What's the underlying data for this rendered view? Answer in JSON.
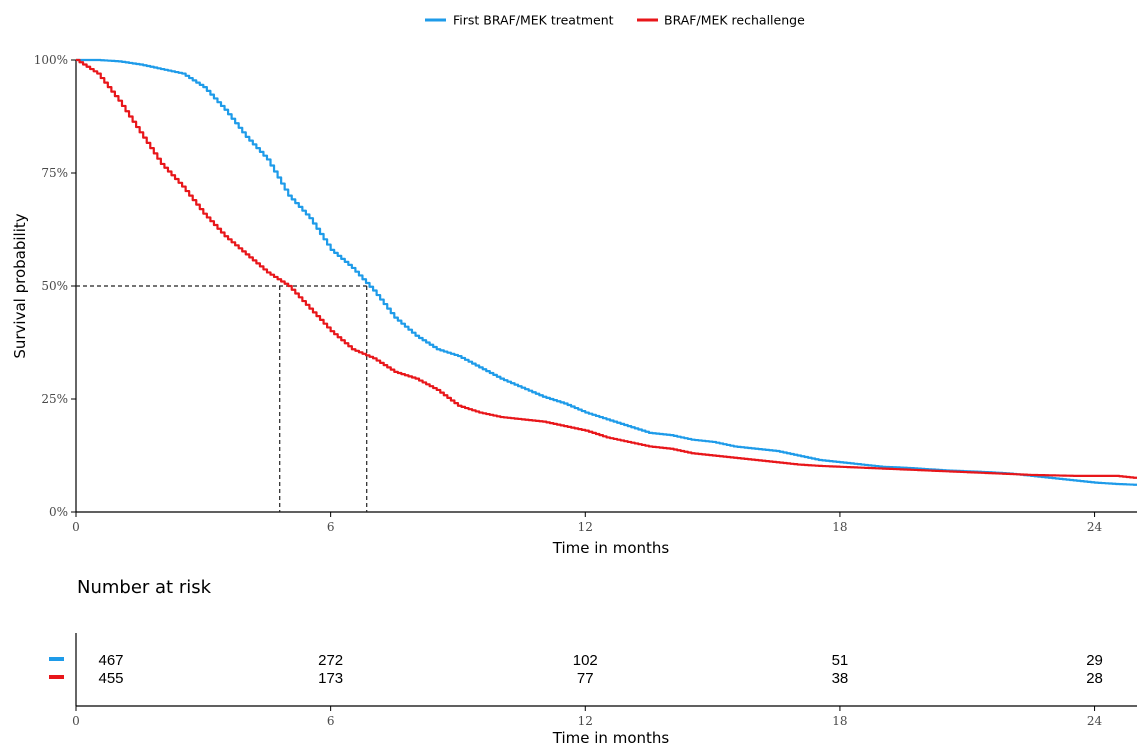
{
  "colors": {
    "first": "#1e9be9",
    "rechallenge": "#e8161a",
    "axis": "#000000",
    "guide": "#222222"
  },
  "legend": {
    "first_label": "First BRAF/MEK treatment",
    "rechallenge_label": "BRAF/MEK rechallenge"
  },
  "risk_table": {
    "title": "Number at risk",
    "first": [
      "467",
      "272",
      "102",
      "51",
      "29"
    ],
    "rechallenge": [
      "455",
      "173",
      "77",
      "38",
      "28"
    ],
    "xlabel": "Time in months"
  },
  "chart_data": {
    "type": "line",
    "title": "",
    "xlabel": "Time in months",
    "ylabel": "Survival probability",
    "xlim": [
      0,
      25
    ],
    "ylim": [
      0,
      100
    ],
    "x_ticks": [
      0,
      6,
      12,
      18,
      24
    ],
    "x_tick_labels": [
      "0",
      "6",
      "12",
      "18",
      "24"
    ],
    "y_ticks": [
      0,
      25,
      50,
      75,
      100
    ],
    "y_tick_labels": [
      "0%",
      "25%",
      "50%",
      "75%",
      "100%"
    ],
    "grid": false,
    "legend_position": "top",
    "median_guides": [
      {
        "x": 4.8,
        "y": 50
      },
      {
        "x": 6.85,
        "y": 50
      }
    ],
    "series": [
      {
        "name": "First BRAF/MEK treatment",
        "color": "#1e9be9",
        "x": [
          0,
          0.5,
          1.0,
          1.5,
          2.0,
          2.5,
          3.0,
          3.5,
          4.0,
          4.5,
          5.0,
          5.5,
          6.0,
          6.5,
          7.0,
          7.5,
          8.0,
          8.5,
          9.0,
          9.5,
          10.0,
          10.5,
          11.0,
          11.5,
          12.0,
          12.5,
          13.0,
          13.5,
          14.0,
          14.5,
          15.0,
          15.5,
          16.0,
          16.5,
          17.0,
          17.5,
          18.0,
          18.5,
          19.0,
          19.5,
          20.0,
          20.5,
          21.0,
          21.5,
          22.0,
          22.5,
          23.0,
          23.5,
          24.0,
          24.5,
          25.0
        ],
        "y": [
          100,
          100,
          99.7,
          99,
          98,
          97,
          94,
          89,
          83,
          78,
          70,
          65,
          58,
          54,
          49,
          43,
          39,
          36,
          34.5,
          32,
          29.5,
          27.5,
          25.5,
          24,
          22,
          20.5,
          19,
          17.5,
          17,
          16,
          15.5,
          14.5,
          14,
          13.5,
          12.5,
          11.5,
          11,
          10.5,
          10,
          9.8,
          9.5,
          9.2,
          9,
          8.8,
          8.5,
          8,
          7.5,
          7,
          6.5,
          6.2,
          6
        ]
      },
      {
        "name": "BRAF/MEK rechallenge",
        "color": "#e8161a",
        "x": [
          0,
          0.5,
          1.0,
          1.5,
          2.0,
          2.5,
          3.0,
          3.5,
          4.0,
          4.5,
          5.0,
          5.5,
          6.0,
          6.5,
          7.0,
          7.5,
          8.0,
          8.5,
          9.0,
          9.5,
          10.0,
          10.5,
          11.0,
          11.5,
          12.0,
          12.5,
          13.0,
          13.5,
          14.0,
          14.5,
          15.0,
          15.5,
          16.0,
          16.5,
          17.0,
          17.5,
          18.0,
          18.5,
          19.0,
          19.5,
          20.0,
          20.5,
          21.0,
          21.5,
          22.0,
          22.5,
          23.0,
          23.5,
          24.0,
          24.5,
          25.0
        ],
        "y": [
          100,
          97,
          91,
          84,
          77,
          72,
          66,
          61,
          57,
          53,
          50,
          45,
          40,
          36,
          34,
          31,
          29.5,
          27,
          23.5,
          22,
          21,
          20.5,
          20,
          19,
          18,
          16.5,
          15.5,
          14.5,
          14,
          13,
          12.5,
          12,
          11.5,
          11,
          10.5,
          10.2,
          10,
          9.8,
          9.6,
          9.4,
          9.2,
          9,
          8.8,
          8.6,
          8.4,
          8.2,
          8.1,
          8,
          8,
          8,
          7.5
        ]
      }
    ]
  }
}
